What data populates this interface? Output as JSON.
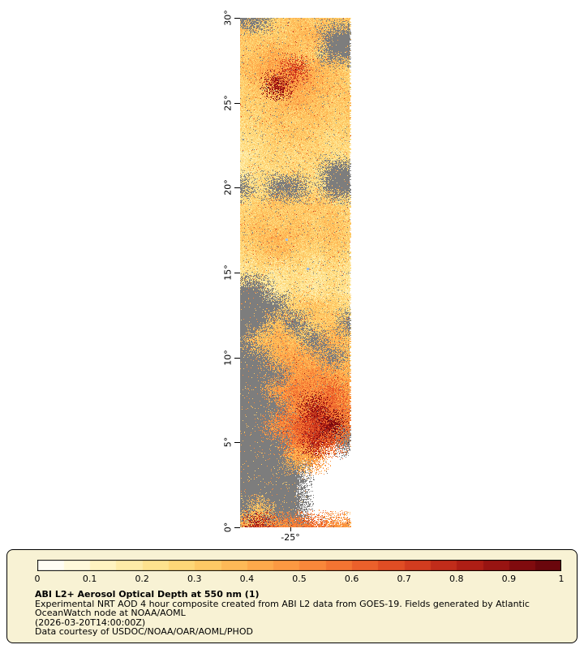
{
  "axes": {
    "lat_ticks": [
      {
        "label": "30°",
        "lat": 30
      },
      {
        "label": "25°",
        "lat": 25
      },
      {
        "label": "20°",
        "lat": 20
      },
      {
        "label": "15°",
        "lat": 15
      },
      {
        "label": "10°",
        "lat": 10
      },
      {
        "label": "5°",
        "lat": 5
      },
      {
        "label": "0°",
        "lat": 0
      }
    ],
    "lon_tick_label": "-25°"
  },
  "legend": {
    "title": "ABI L2+ Aerosol Optical Depth at 550 nm (1)",
    "description_lines": [
      "Experimental NRT AOD 4 hour composite created from ABI L2 data from GOES-19. Fields generated by Atlantic",
      "OceanWatch node at NOAA/AOML"
    ],
    "timestamp": "(2026-03-20T14:00:00Z)",
    "courtesy": "Data courtesy of USDOC/NOAA/OAR/AOML/PHOD",
    "background": "#f8f2d4"
  },
  "chart_data": {
    "type": "heatmap",
    "title": "ABI L2+ Aerosol Optical Depth at 550 nm (1)",
    "ylabel_ticks": [
      "30°",
      "25°",
      "20°",
      "15°",
      "10°",
      "5°",
      "0°"
    ],
    "xlabel_ticks": [
      "-25°"
    ],
    "lat_range": [
      0,
      30
    ],
    "colorbar": {
      "ticks": [
        "0",
        "0.1",
        "0.2",
        "0.3",
        "0.4",
        "0.5",
        "0.6",
        "0.7",
        "0.8",
        "0.9",
        "1"
      ],
      "range": [
        0,
        1
      ],
      "missing_color": "#7d7d7d",
      "outside_color": "#ffffff",
      "stops": [
        [
          0.0,
          "#ffffff"
        ],
        [
          0.05,
          "#fffbe8"
        ],
        [
          0.1,
          "#fff6cd"
        ],
        [
          0.15,
          "#feefb3"
        ],
        [
          0.2,
          "#fee79a"
        ],
        [
          0.25,
          "#fedd82"
        ],
        [
          0.3,
          "#fed06d"
        ],
        [
          0.35,
          "#fec15d"
        ],
        [
          0.4,
          "#feb150"
        ],
        [
          0.45,
          "#fda146"
        ],
        [
          0.5,
          "#fb903e"
        ],
        [
          0.55,
          "#f67d36"
        ],
        [
          0.6,
          "#f06a2e"
        ],
        [
          0.65,
          "#e65627"
        ],
        [
          0.7,
          "#d94421"
        ],
        [
          0.75,
          "#ca331c"
        ],
        [
          0.8,
          "#b82417"
        ],
        [
          0.85,
          "#a31813"
        ],
        [
          0.9,
          "#8c0f10"
        ],
        [
          0.95,
          "#75080d"
        ],
        [
          1.0,
          "#5f030a"
        ]
      ]
    },
    "grid_note": "Coarse 1-degree AOD estimate read from the swath image; rows run 30N (top) to 0N (bottom), columns west to east. null = no retrieval (gray), -1 = outside swath (white).",
    "grid": [
      [
        null,
        null,
        0.3,
        0.35,
        0.3,
        0.35,
        0.3
      ],
      [
        0.35,
        0.3,
        0.3,
        0.35,
        0.4,
        null,
        null
      ],
      [
        0.3,
        0.35,
        0.4,
        0.35,
        0.3,
        null,
        null
      ],
      [
        0.35,
        0.4,
        0.45,
        0.7,
        0.4,
        0.35,
        0.3
      ],
      [
        0.3,
        0.35,
        0.85,
        0.45,
        0.4,
        0.35,
        0.3
      ],
      [
        0.3,
        0.3,
        0.35,
        0.4,
        0.35,
        0.3,
        0.35
      ],
      [
        0.25,
        0.3,
        0.35,
        0.3,
        0.35,
        0.3,
        0.3
      ],
      [
        0.25,
        0.25,
        0.3,
        0.35,
        0.3,
        0.25,
        0.3
      ],
      [
        0.2,
        0.25,
        0.3,
        0.25,
        0.3,
        0.25,
        0.25
      ],
      [
        0.2,
        0.25,
        0.25,
        0.3,
        0.25,
        null,
        null
      ],
      [
        null,
        0.25,
        null,
        null,
        0.25,
        null,
        null
      ],
      [
        0.25,
        0.3,
        0.35,
        0.3,
        0.35,
        0.3,
        0.25
      ],
      [
        0.3,
        0.35,
        0.3,
        0.35,
        0.3,
        0.35,
        0.3
      ],
      [
        0.3,
        0.35,
        0.4,
        0.35,
        0.3,
        0.35,
        0.3
      ],
      [
        0.25,
        0.3,
        0.35,
        0.3,
        0.25,
        0.3,
        0.25
      ],
      [
        0.2,
        0.25,
        0.2,
        0.25,
        0.2,
        0.25,
        0.2
      ],
      [
        null,
        null,
        0.2,
        0.25,
        0.2,
        0.25,
        0.2
      ],
      [
        null,
        null,
        null,
        0.3,
        0.35,
        0.3,
        0.25
      ],
      [
        null,
        null,
        0.35,
        null,
        0.3,
        0.35,
        null
      ],
      [
        null,
        0.35,
        0.4,
        0.35,
        null,
        0.4,
        0.35
      ],
      [
        null,
        null,
        0.4,
        0.45,
        0.4,
        null,
        0.35
      ],
      [
        null,
        null,
        null,
        0.45,
        0.5,
        0.45,
        0.4
      ],
      [
        null,
        null,
        0.45,
        0.55,
        0.5,
        0.6,
        0.45
      ],
      [
        null,
        null,
        null,
        0.5,
        0.85,
        0.6,
        0.5
      ],
      [
        null,
        null,
        0.5,
        0.6,
        0.7,
        0.9,
        0.55
      ],
      [
        null,
        null,
        null,
        0.55,
        0.8,
        0.6,
        null
      ],
      [
        null,
        null,
        null,
        0.4,
        0.45,
        -1,
        -1
      ],
      [
        null,
        null,
        null,
        null,
        -1,
        -1,
        -1
      ],
      [
        null,
        null,
        null,
        null,
        -1,
        -1,
        -1
      ],
      [
        null,
        0.35,
        null,
        null,
        -1,
        -1,
        -1
      ],
      [
        0.4,
        0.8,
        0.5,
        0.55,
        0.6,
        0.5,
        0.45
      ]
    ],
    "water_specks": [
      {
        "lat": 17.0,
        "frac": 0.41,
        "color": "#a8c4e4"
      },
      {
        "lat": 15.3,
        "frac": 0.6,
        "color": "#9fbedd"
      }
    ]
  }
}
